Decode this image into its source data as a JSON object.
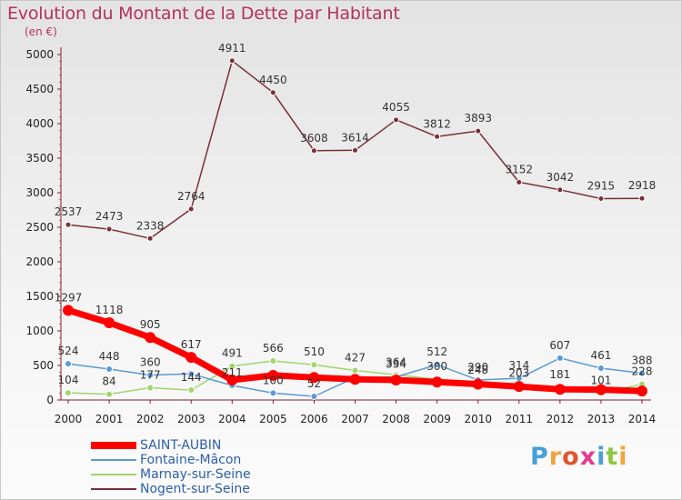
{
  "chart_data": {
    "type": "line",
    "title": "Evolution du Montant de la Dette par Habitant",
    "subtitle": "(en €)",
    "x": [
      "2000",
      "2001",
      "2002",
      "2003",
      "2004",
      "2005",
      "2006",
      "2007",
      "2008",
      "2009",
      "2010",
      "2011",
      "2012",
      "2013",
      "2014"
    ],
    "ylim": [
      0,
      5000
    ],
    "yticks": [
      0,
      500,
      1000,
      1500,
      2000,
      2500,
      3000,
      3500,
      4000,
      4500,
      5000
    ],
    "grid": false,
    "legend_position": "bottom-left",
    "series": [
      {
        "name": "SAINT-AUBIN",
        "color": "#ff0000",
        "values": [
          1297,
          1118,
          905,
          617,
          290,
          356,
          325,
          300,
          290,
          260,
          230,
          195,
          154,
          150,
          130
        ],
        "labels": [
          "1297",
          "1118",
          "905",
          "617",
          "",
          "",
          "",
          "",
          "",
          "",
          "",
          "",
          "",
          "",
          ""
        ]
      },
      {
        "name": "Fontaine-Mâcon",
        "color": "#5a9ad4",
        "values": [
          524,
          448,
          360,
          377,
          211,
          100,
          52,
          325,
          334,
          512,
          290,
          314,
          607,
          461,
          388
        ],
        "labels": [
          "524",
          "448",
          "360",
          "",
          "211",
          "100",
          "52",
          "",
          "334",
          "512",
          "290",
          "314",
          "607",
          "461",
          "388"
        ]
      },
      {
        "name": "Marnay-sur-Seine",
        "color": "#9fd66b",
        "values": [
          104,
          84,
          177,
          144,
          491,
          566,
          510,
          427,
          364,
          300,
          248,
          203,
          181,
          101,
          228
        ],
        "labels": [
          "104",
          "84",
          "177",
          "144",
          "491",
          "566",
          "510",
          "427",
          "364",
          "300",
          "248",
          "203",
          "181",
          "101",
          "228"
        ]
      },
      {
        "name": "Nogent-sur-Seine",
        "color": "#7a2e38",
        "values": [
          2537,
          2473,
          2338,
          2764,
          4911,
          4450,
          3608,
          3614,
          4055,
          3812,
          3893,
          3152,
          3042,
          2915,
          2918
        ],
        "labels": [
          "2537",
          "2473",
          "2338",
          "2764",
          "4911",
          "4450",
          "3608",
          "3614",
          "4055",
          "3812",
          "3893",
          "3152",
          "3042",
          "2915",
          "2918"
        ]
      }
    ]
  },
  "page": {
    "title": "Evolution du Montant de la Dette par Habitant",
    "subtitle": "(en €)",
    "legend": [
      {
        "label": "SAINT-AUBIN",
        "color": "#ff0000"
      },
      {
        "label": "Fontaine-Mâcon",
        "color": "#5a9ad4"
      },
      {
        "label": "Marnay-sur-Seine",
        "color": "#9fd66b"
      },
      {
        "label": "Nogent-sur-Seine",
        "color": "#7a2e38"
      }
    ],
    "logo": {
      "letters": [
        "P",
        "r",
        "o",
        "x",
        "i",
        "t",
        "i"
      ],
      "colors": [
        "#4a9fd8",
        "#f2a33a",
        "#e2542e",
        "#e63b8f",
        "#4a9fd8",
        "#8ec63f",
        "#f2a33a"
      ]
    }
  }
}
